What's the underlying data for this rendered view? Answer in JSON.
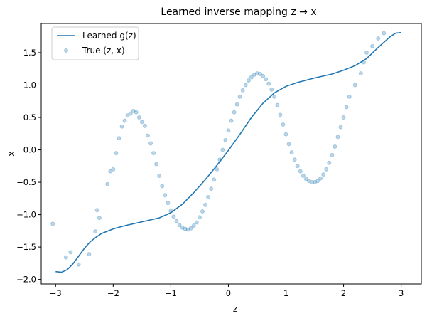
{
  "chart_data": {
    "type": "scatter",
    "title": "Learned inverse mapping z → x",
    "xlabel": "z",
    "ylabel": "x",
    "xlim": [
      -3.25,
      3.35
    ],
    "ylim": [
      -2.07,
      1.95
    ],
    "xticks": [
      -3,
      -2,
      -1,
      0,
      1,
      2,
      3
    ],
    "yticks": [
      -2.0,
      -1.5,
      -1.0,
      -0.5,
      0.0,
      0.5,
      1.0,
      1.5
    ],
    "ytick_labels": [
      "−2.0",
      "−1.5",
      "−1.0",
      "−0.5",
      "0.0",
      "0.5",
      "1.0",
      "1.5"
    ],
    "xtick_labels": [
      "−3",
      "−2",
      "−1",
      "0",
      "1",
      "2",
      "3"
    ],
    "grid": false,
    "legend": "top-left",
    "colors": {
      "line": "#1f77b4",
      "points": "#1f77b4"
    },
    "series": [
      {
        "name": "Learned g(z)",
        "type": "line",
        "x": [
          -3.0,
          -2.9,
          -2.8,
          -2.7,
          -2.6,
          -2.5,
          -2.4,
          -2.3,
          -2.2,
          -2.0,
          -1.8,
          -1.5,
          -1.2,
          -1.0,
          -0.8,
          -0.6,
          -0.4,
          -0.2,
          0.0,
          0.2,
          0.4,
          0.6,
          0.8,
          1.0,
          1.2,
          1.5,
          1.8,
          2.0,
          2.2,
          2.4,
          2.6,
          2.8,
          2.9,
          3.0
        ],
        "y": [
          -1.88,
          -1.89,
          -1.85,
          -1.76,
          -1.64,
          -1.52,
          -1.42,
          -1.35,
          -1.29,
          -1.22,
          -1.17,
          -1.11,
          -1.05,
          -0.97,
          -0.84,
          -0.66,
          -0.46,
          -0.24,
          -0.01,
          0.24,
          0.5,
          0.72,
          0.88,
          0.98,
          1.04,
          1.11,
          1.17,
          1.23,
          1.3,
          1.41,
          1.58,
          1.74,
          1.8,
          1.81
        ]
      },
      {
        "name": "True (z, x)",
        "type": "scatter",
        "x": [
          -3.05,
          -2.82,
          -2.74,
          -2.6,
          -2.42,
          -2.31,
          -2.28,
          -2.24,
          -2.1,
          -2.05,
          -2.0,
          -1.95,
          -1.9,
          -1.85,
          -1.8,
          -1.75,
          -1.7,
          -1.65,
          -1.6,
          -1.55,
          -1.5,
          -1.45,
          -1.4,
          -1.35,
          -1.3,
          -1.25,
          -1.2,
          -1.15,
          -1.1,
          -1.05,
          -1.0,
          -0.95,
          -0.9,
          -0.85,
          -0.8,
          -0.75,
          -0.7,
          -0.65,
          -0.6,
          -0.55,
          -0.5,
          -0.45,
          -0.4,
          -0.35,
          -0.3,
          -0.25,
          -0.2,
          -0.15,
          -0.1,
          -0.05,
          0.0,
          0.05,
          0.1,
          0.15,
          0.2,
          0.25,
          0.3,
          0.35,
          0.4,
          0.45,
          0.5,
          0.55,
          0.6,
          0.65,
          0.7,
          0.75,
          0.8,
          0.85,
          0.9,
          0.95,
          1.0,
          1.05,
          1.1,
          1.15,
          1.2,
          1.25,
          1.3,
          1.35,
          1.4,
          1.45,
          1.5,
          1.55,
          1.6,
          1.65,
          1.7,
          1.75,
          1.8,
          1.85,
          1.9,
          1.95,
          2.0,
          2.05,
          2.1,
          2.2,
          2.3,
          2.35,
          2.4,
          2.5,
          2.6,
          2.7
        ],
        "y": [
          -1.14,
          -1.66,
          -1.58,
          -1.77,
          -1.61,
          -1.26,
          -0.93,
          -1.05,
          -0.53,
          -0.33,
          -0.3,
          -0.05,
          0.18,
          0.36,
          0.45,
          0.53,
          0.56,
          0.6,
          0.58,
          0.5,
          0.43,
          0.37,
          0.22,
          0.1,
          -0.05,
          -0.22,
          -0.4,
          -0.56,
          -0.7,
          -0.82,
          -0.94,
          -1.03,
          -1.1,
          -1.16,
          -1.2,
          -1.22,
          -1.23,
          -1.21,
          -1.17,
          -1.12,
          -1.04,
          -0.95,
          -0.85,
          -0.73,
          -0.6,
          -0.46,
          -0.3,
          -0.15,
          0.0,
          0.15,
          0.3,
          0.45,
          0.58,
          0.7,
          0.82,
          0.92,
          1.0,
          1.07,
          1.12,
          1.16,
          1.18,
          1.17,
          1.14,
          1.09,
          1.02,
          0.93,
          0.82,
          0.69,
          0.54,
          0.39,
          0.24,
          0.09,
          -0.04,
          -0.15,
          -0.25,
          -0.33,
          -0.4,
          -0.45,
          -0.48,
          -0.5,
          -0.5,
          -0.48,
          -0.44,
          -0.38,
          -0.3,
          -0.2,
          -0.08,
          0.05,
          0.2,
          0.35,
          0.5,
          0.66,
          0.82,
          1.0,
          1.18,
          1.35,
          1.5,
          1.6,
          1.72,
          1.8
        ]
      }
    ]
  }
}
